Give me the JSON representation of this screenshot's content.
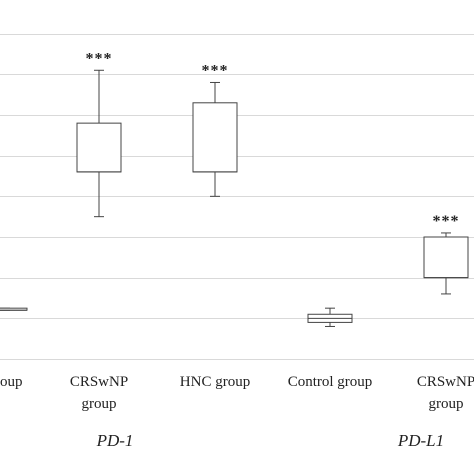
{
  "chart_data": {
    "type": "box",
    "ylim": [
      0,
      9
    ],
    "y_gridlines": [
      0,
      1,
      2,
      3,
      4,
      5,
      6,
      7,
      8,
      9
    ],
    "grid": true,
    "groups": [
      {
        "name": "PD-1",
        "categories": [
          {
            "label_lines": [
              "group"
            ],
            "whisker_low": 1.2,
            "q1": 1.2,
            "median": 1.2,
            "q3": 1.25,
            "whisker_high": 1.25,
            "significance": ""
          },
          {
            "label_lines": [
              "CRSwNP",
              "group"
            ],
            "whisker_low": 3.5,
            "q1": 4.6,
            "median": 4.6,
            "q3": 5.8,
            "whisker_high": 7.1,
            "significance": "***"
          },
          {
            "label_lines": [
              "HNC group"
            ],
            "whisker_low": 4.0,
            "q1": 4.6,
            "median": 4.6,
            "q3": 6.3,
            "whisker_high": 6.8,
            "significance": "***"
          }
        ]
      },
      {
        "name": "PD-L1",
        "categories": [
          {
            "label_lines": [
              "Control group"
            ],
            "whisker_low": 0.8,
            "q1": 0.9,
            "median": 1.0,
            "q3": 1.1,
            "whisker_high": 1.25,
            "significance": ""
          },
          {
            "label_lines": [
              "CRSwNP",
              "group"
            ],
            "whisker_low": 1.6,
            "q1": 2.0,
            "median": 2.0,
            "q3": 3.0,
            "whisker_high": 3.1,
            "significance": "***"
          }
        ]
      }
    ]
  }
}
